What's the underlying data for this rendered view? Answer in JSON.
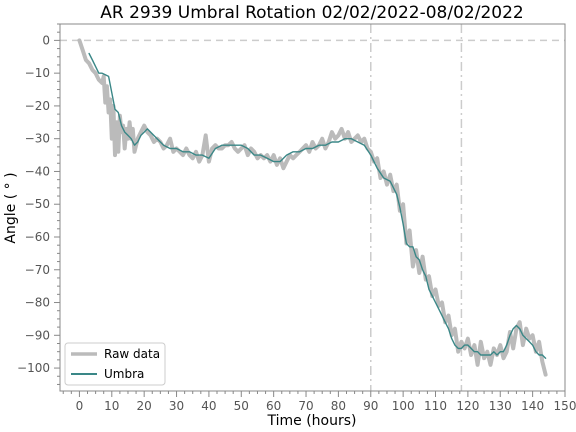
{
  "chart_data": {
    "type": "line",
    "title": "AR 2939 Umbral Rotation 02/02/2022-08/02/2022",
    "xlabel": "Time (hours)",
    "ylabel": "Angle ( ° )",
    "xlim": [
      -6,
      150
    ],
    "ylim": [
      -107,
      5
    ],
    "x_ticks": [
      0,
      10,
      20,
      30,
      40,
      50,
      60,
      70,
      80,
      90,
      100,
      110,
      120,
      130,
      140,
      150
    ],
    "y_ticks": [
      0,
      -10,
      -20,
      -30,
      -40,
      -50,
      -60,
      -70,
      -80,
      -90,
      -100
    ],
    "grid": false,
    "legend_position": "bottom-left",
    "reference_lines": [
      {
        "orientation": "horizontal",
        "value": 0,
        "style": "dashed",
        "color": "#cccccc"
      },
      {
        "orientation": "vertical",
        "value": 90,
        "style": "dashdot",
        "color": "#cccccc"
      },
      {
        "orientation": "vertical",
        "value": 118,
        "style": "dashdot",
        "color": "#cccccc"
      }
    ],
    "series": [
      {
        "name": "Raw data",
        "color": "#bbbbbb",
        "x": [
          0,
          1,
          2,
          3,
          4,
          5,
          6,
          7,
          7.5,
          8,
          8.5,
          9,
          9.5,
          10,
          10.5,
          11,
          11.5,
          12,
          12.5,
          13,
          13.5,
          14,
          14.5,
          15,
          15.5,
          16,
          16.5,
          17,
          18,
          19,
          20,
          21,
          22,
          23,
          24,
          25,
          26,
          27,
          28,
          29,
          30,
          31,
          32,
          33,
          34,
          35,
          36,
          37,
          38,
          39,
          40,
          41,
          42,
          43,
          44,
          45,
          46,
          47,
          48,
          49,
          50,
          51,
          52,
          53,
          54,
          55,
          56,
          57,
          58,
          59,
          60,
          61,
          62,
          63,
          64,
          65,
          66,
          67,
          68,
          69,
          70,
          71,
          72,
          73,
          74,
          75,
          76,
          77,
          78,
          79,
          80,
          81,
          82,
          83,
          84,
          85,
          86,
          87,
          88,
          89,
          90,
          91,
          92,
          93,
          94,
          95,
          96,
          97,
          98,
          99,
          100,
          101,
          102,
          103,
          104,
          105,
          106,
          107,
          108,
          109,
          110,
          111,
          112,
          113,
          114,
          115,
          116,
          117,
          118,
          119,
          120,
          121,
          122,
          123,
          124,
          125,
          126,
          127,
          128,
          129,
          130,
          131,
          132,
          133,
          134,
          135,
          136,
          137,
          138,
          139,
          140,
          141,
          142,
          143,
          144
        ],
        "y": [
          0,
          -3,
          -6,
          -7,
          -9,
          -10,
          -12,
          -13,
          -11,
          -19,
          -14,
          -22,
          -18,
          -30,
          -20,
          -35,
          -25,
          -34,
          -23,
          -28,
          -26,
          -33,
          -27,
          -30,
          -25,
          -30,
          -27,
          -34,
          -30,
          -28,
          -26,
          -28,
          -29,
          -31,
          -30,
          -31,
          -33,
          -32,
          -30,
          -34,
          -33,
          -34,
          -35,
          -33,
          -35,
          -36,
          -34,
          -37,
          -35,
          -29,
          -37,
          -33,
          -32,
          -33,
          -33,
          -32,
          -32,
          -31,
          -33,
          -34,
          -33,
          -32,
          -35,
          -33,
          -34,
          -36,
          -35,
          -36,
          -35,
          -37,
          -35,
          -38,
          -36,
          -39,
          -37,
          -35,
          -36,
          -35,
          -34,
          -33,
          -32,
          -34,
          -31,
          -33,
          -32,
          -30,
          -33,
          -31,
          -28,
          -30,
          -29,
          -27,
          -30,
          -28,
          -31,
          -30,
          -29,
          -31,
          -30,
          -33,
          -34,
          -37,
          -36,
          -42,
          -40,
          -44,
          -41,
          -46,
          -44,
          -52,
          -50,
          -62,
          -58,
          -69,
          -64,
          -71,
          -66,
          -73,
          -72,
          -78,
          -76,
          -81,
          -80,
          -86,
          -84,
          -90,
          -88,
          -95,
          -92,
          -94,
          -91,
          -96,
          -93,
          -99,
          -92,
          -97,
          -95,
          -99,
          -94,
          -96,
          -93,
          -97,
          -95,
          -89,
          -94,
          -88,
          -86,
          -93,
          -88,
          -91,
          -90,
          -95,
          -92,
          -98,
          -102
        ],
        "stroke_width": 4
      },
      {
        "name": "Umbra",
        "color": "#3a8787",
        "x": [
          3,
          4,
          5,
          6,
          7,
          8,
          9,
          10,
          11,
          12,
          13,
          14,
          15,
          16,
          17,
          18,
          19,
          20,
          21,
          22,
          24,
          26,
          28,
          30,
          32,
          34,
          36,
          38,
          40,
          42,
          44,
          46,
          48,
          50,
          52,
          54,
          56,
          58,
          60,
          62,
          64,
          66,
          68,
          70,
          72,
          74,
          76,
          78,
          80,
          82,
          84,
          86,
          88,
          90,
          92,
          94,
          96,
          98,
          99,
          100,
          101,
          102,
          103,
          104,
          105,
          106,
          107,
          108,
          109,
          110,
          111,
          112,
          113,
          114,
          115,
          116,
          117,
          118,
          119,
          120,
          121,
          122,
          123,
          124,
          125,
          126,
          127,
          128,
          129,
          130,
          131,
          132,
          133,
          134,
          135,
          136,
          137,
          138,
          139,
          140,
          141,
          142,
          143,
          144
        ],
        "y": [
          -4,
          -6,
          -8,
          -10,
          -10,
          -10.5,
          -11,
          -16,
          -21,
          -22,
          -26,
          -28,
          -29,
          -30,
          -32,
          -31,
          -29,
          -28,
          -27,
          -28,
          -30,
          -32,
          -33,
          -33,
          -34,
          -34,
          -35,
          -35,
          -36,
          -33,
          -32,
          -32,
          -32,
          -32,
          -33,
          -35,
          -35,
          -36,
          -37,
          -37,
          -35,
          -34,
          -34,
          -33,
          -33,
          -32,
          -32,
          -31,
          -31,
          -30,
          -30,
          -31,
          -32,
          -35,
          -39,
          -42,
          -43,
          -47,
          -51,
          -56,
          -62,
          -63,
          -63,
          -66,
          -67,
          -70,
          -72,
          -76,
          -78,
          -80,
          -82,
          -84,
          -86,
          -88,
          -91,
          -93,
          -94,
          -94,
          -93,
          -93,
          -94,
          -95,
          -95,
          -96,
          -96,
          -96,
          -96,
          -95,
          -96,
          -95,
          -95,
          -93,
          -90,
          -88,
          -87,
          -88,
          -90,
          -91,
          -92,
          -93,
          -95,
          -96,
          -96,
          -97
        ],
        "stroke_width": 1.4
      }
    ]
  }
}
